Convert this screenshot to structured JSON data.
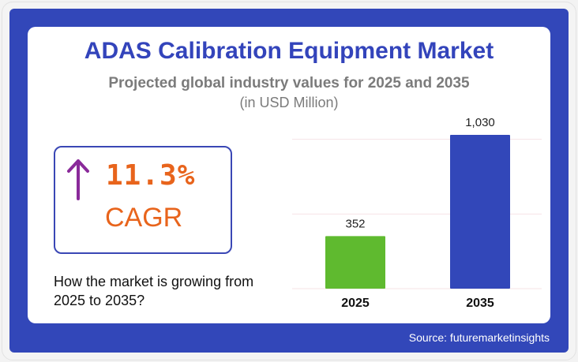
{
  "title": "ADAS Calibration Equipment Market",
  "subtitle": "Projected global industry values for 2025 and 2035",
  "unit": "(in USD Million)",
  "cagr": {
    "value": "11.3%",
    "label": "CAGR",
    "icon": "arrow-up-icon",
    "color": "#e8641c",
    "arrow_color": "#8a2a9a"
  },
  "question": "How the market is growing from 2025 to 2035?",
  "source": "Source: futuremarketinsights",
  "chart_data": {
    "type": "bar",
    "title": "",
    "xlabel": "",
    "ylabel": "USD Million",
    "categories": [
      "2025",
      "2035"
    ],
    "values": [
      352,
      1030
    ],
    "value_labels": [
      "352",
      "1,030"
    ],
    "colors": [
      "#5fba2f",
      "#3247b9"
    ],
    "ylim": [
      0,
      1050
    ],
    "gridlines": [
      500,
      1000
    ],
    "grid": true
  }
}
